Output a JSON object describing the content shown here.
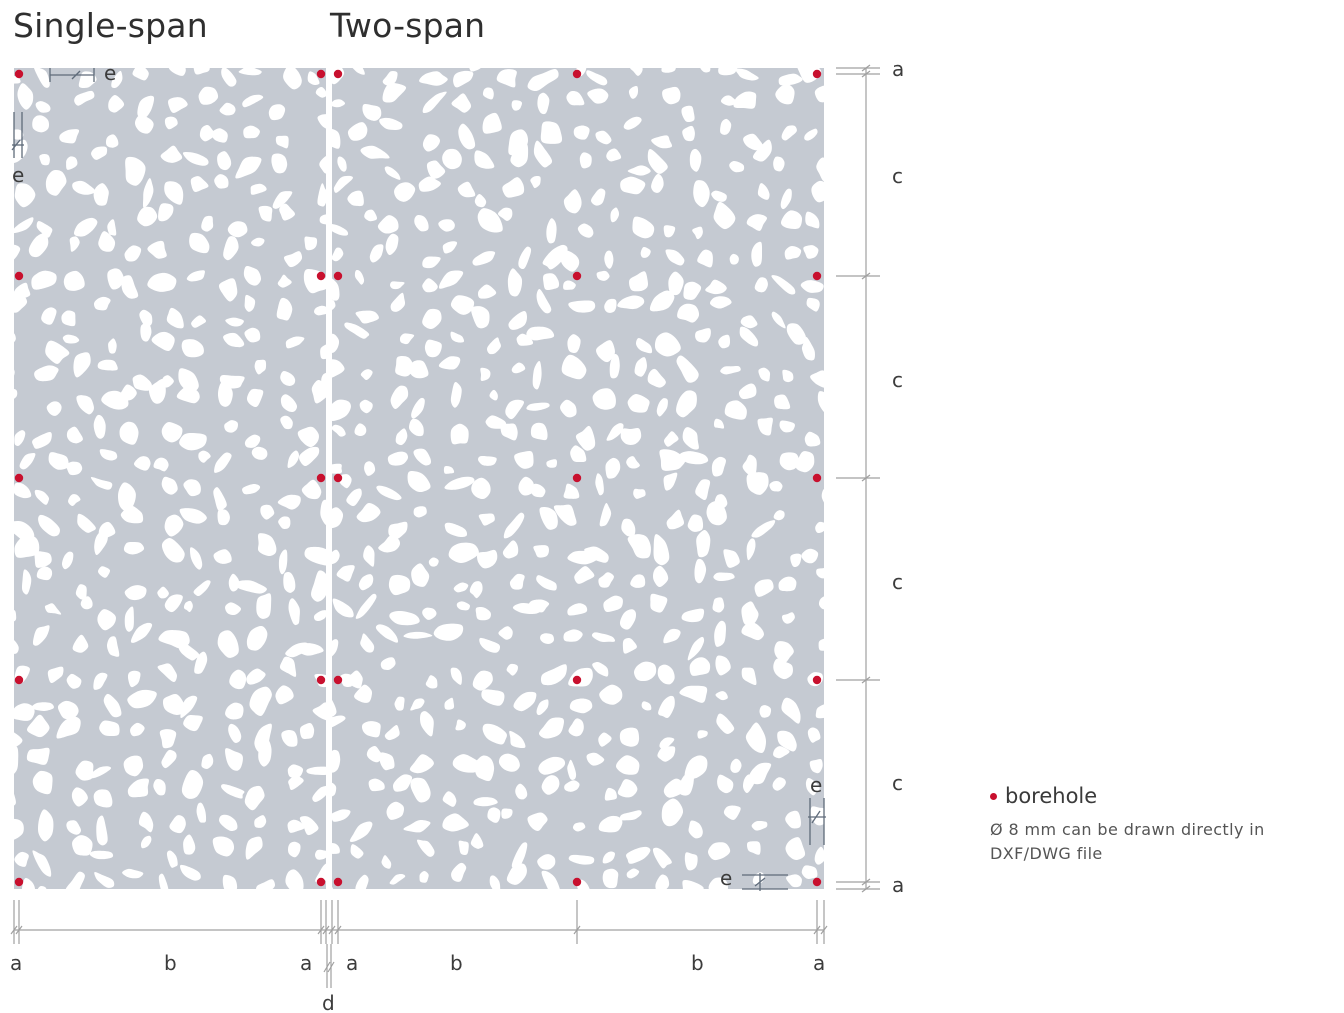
{
  "titles": {
    "single": "Single-span",
    "two": "Two-span"
  },
  "legend": {
    "title": "borehole",
    "description": "Ø 8 mm can be drawn directly in DXF/DWG file",
    "dot_color": "#c8102e"
  },
  "labels": {
    "a": "a",
    "b": "b",
    "c": "c",
    "d": "d",
    "e": "e"
  },
  "colors": {
    "panel": "#c5cad2",
    "hole": "#ffffff",
    "borehole": "#c8102e",
    "dim_line": "#a0a0a0",
    "edge_dim": "#5f6b7a"
  }
}
